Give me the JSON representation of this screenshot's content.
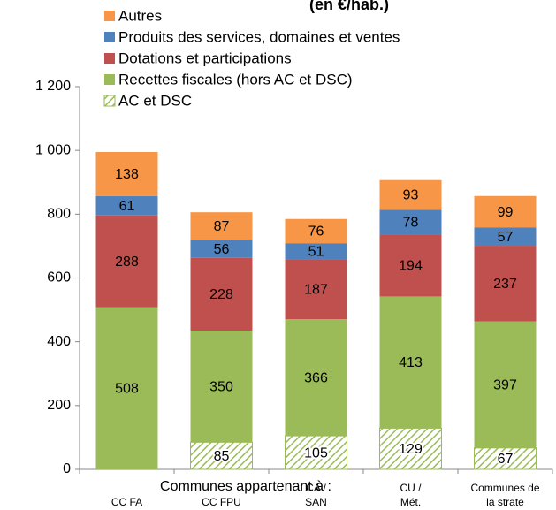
{
  "chart_data": {
    "type": "bar",
    "stacked": true,
    "title": "(en €/hab.)",
    "x_label": "Communes appartenant à :",
    "categories": [
      "CC FA",
      "CC FPU",
      "CA / SAN",
      "CU / Mét.",
      "Communes de la strate"
    ],
    "series": [
      {
        "name": "AC et DSC",
        "color": "#9bbb59",
        "hatched": true,
        "values": [
          null,
          85,
          105,
          129,
          67
        ]
      },
      {
        "name": "Recettes fiscales (hors AC et DSC)",
        "color": "#9bbb59",
        "values": [
          508,
          350,
          366,
          413,
          397
        ]
      },
      {
        "name": "Dotations et participations",
        "color": "#c0504d",
        "values": [
          288,
          228,
          187,
          194,
          237
        ]
      },
      {
        "name": "Produits des services, domaines et ventes",
        "color": "#4f81bd",
        "values": [
          61,
          56,
          51,
          78,
          57
        ]
      },
      {
        "name": "Autres",
        "color": "#f79646",
        "values": [
          138,
          87,
          76,
          93,
          99
        ]
      }
    ],
    "ylim": [
      0,
      1200
    ],
    "yticks": [
      0,
      200,
      400,
      600,
      800,
      {
        "value": 1000,
        "label": "1 000"
      },
      {
        "value": 1200,
        "label": "1 200"
      }
    ]
  }
}
